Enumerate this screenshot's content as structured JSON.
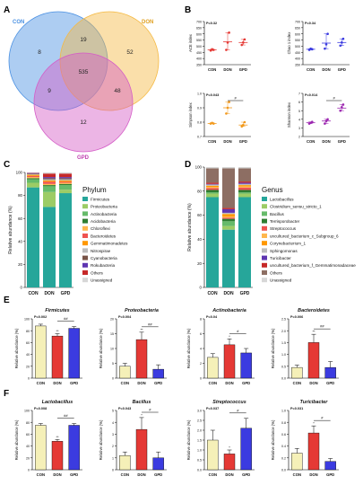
{
  "panels": {
    "A": "A",
    "B": "B",
    "C": "C",
    "D": "D",
    "E": "E",
    "F": "F"
  },
  "colors": {
    "con": "#f5f0b8",
    "don": "#e53935",
    "gpd": "#3b3be0",
    "venn_con": "#4a90e2",
    "venn_don": "#f5b942",
    "venn_gpd": "#d45cc6"
  },
  "venn": {
    "labels": {
      "con": "CON",
      "don": "DON",
      "gpd": "GPD"
    },
    "counts": {
      "con_only": "8",
      "don_only": "52",
      "gpd_only": "12",
      "con_don": "19",
      "con_gpd": "9",
      "don_gpd": "48",
      "all": "535"
    }
  },
  "chart_data": [
    {
      "panel": "B",
      "type": "scatter",
      "ylabel": "ACE index",
      "pval": "P=0.32",
      "categories": [
        "CON",
        "DON",
        "GPD"
      ],
      "ylim": [
        350,
        700
      ],
      "yticks": [
        "350",
        "400",
        "450",
        "500",
        "550",
        "600",
        "650",
        "700"
      ],
      "points": [
        [
          465,
          475,
          470
        ],
        [
          470,
          530,
          610
        ],
        [
          510,
          530,
          555
        ]
      ],
      "means": [
        470,
        535,
        530
      ],
      "sig": ""
    },
    {
      "panel": "B",
      "type": "scatter",
      "ylabel": "Chao 1 index",
      "pval": "P=0.34",
      "categories": [
        "CON",
        "DON",
        "GPD"
      ],
      "ylim": [
        350,
        700
      ],
      "yticks": [
        "350",
        "400",
        "450",
        "500",
        "550",
        "600",
        "650",
        "700"
      ],
      "points": [
        [
          470,
          480,
          475
        ],
        [
          480,
          515,
          600
        ],
        [
          505,
          530,
          560
        ]
      ],
      "means": [
        475,
        525,
        530
      ],
      "sig": ""
    },
    {
      "panel": "B",
      "type": "scatter",
      "ylabel": "Simpson index",
      "pval": "P=0.043",
      "categories": [
        "CON",
        "DON",
        "GPD"
      ],
      "ylim": [
        0.7,
        1.0
      ],
      "yticks": [
        "0.7",
        "0.8",
        "0.9",
        "1.0"
      ],
      "points": [
        [
          0.79,
          0.795,
          0.79
        ],
        [
          0.86,
          0.9,
          0.94
        ],
        [
          0.77,
          0.78,
          0.8
        ]
      ],
      "means": [
        0.79,
        0.9,
        0.78
      ],
      "sig": "#"
    },
    {
      "panel": "B",
      "type": "scatter",
      "ylabel": "Shannon index",
      "pval": "P=0.014",
      "categories": [
        "CON",
        "DON",
        "GPD"
      ],
      "ylim": [
        2,
        7
      ],
      "yticks": [
        "2",
        "3",
        "4",
        "5",
        "6",
        "7"
      ],
      "points": [
        [
          3.5,
          3.6,
          3.7
        ],
        [
          3.5,
          3.8,
          4.0
        ],
        [
          5.0,
          5.4,
          5.7
        ]
      ],
      "means": [
        3.6,
        3.8,
        5.3
      ],
      "sig": "#"
    },
    {
      "panel": "C",
      "type": "bar",
      "legend_title": "Phylum",
      "ylabel": "Relative abundance (%)",
      "categories": [
        "CON",
        "DON",
        "GPD"
      ],
      "ylim": [
        0,
        100
      ],
      "yticks": [
        "0",
        "20",
        "40",
        "60",
        "80",
        "100"
      ],
      "series": [
        {
          "name": "Firmicutes",
          "color": "#26a69a",
          "values": [
            87,
            70,
            82
          ]
        },
        {
          "name": "Proteobacteria",
          "color": "#9ccc65",
          "values": [
            4,
            13,
            3
          ]
        },
        {
          "name": "Actinobacteria",
          "color": "#66bb6a",
          "values": [
            3,
            5,
            4
          ]
        },
        {
          "name": "Acidobacteria",
          "color": "#2e7d32",
          "values": [
            1,
            1,
            1
          ]
        },
        {
          "name": "Chloroflexi",
          "color": "#ffb74d",
          "values": [
            1,
            1,
            1
          ]
        },
        {
          "name": "Bacteroidetes",
          "color": "#ef5350",
          "values": [
            1,
            2,
            1
          ]
        },
        {
          "name": "Gemmatimonadetes",
          "color": "#ff9800",
          "values": [
            1,
            1,
            1
          ]
        },
        {
          "name": "Nitrospirae",
          "color": "#bdbdbd",
          "values": [
            0.5,
            1,
            1
          ]
        },
        {
          "name": "Cyanobacteria",
          "color": "#795548",
          "values": [
            0.5,
            1,
            1
          ]
        },
        {
          "name": "Rokubacteria",
          "color": "#5e35b1",
          "values": [
            0.5,
            1,
            1
          ]
        },
        {
          "name": "Others",
          "color": "#c62828",
          "values": [
            0.3,
            3,
            3
          ]
        },
        {
          "name": "Unassigned",
          "color": "#d7d7d7",
          "values": [
            0.2,
            1,
            1
          ]
        }
      ]
    },
    {
      "panel": "D",
      "type": "bar",
      "legend_title": "Genus",
      "ylabel": "Relative abundance (%)",
      "categories": [
        "CON",
        "DON",
        "GPD"
      ],
      "ylim": [
        0,
        100
      ],
      "yticks": [
        "0",
        "20",
        "40",
        "60",
        "80",
        "100"
      ],
      "series": [
        {
          "name": "Lactobacillus",
          "color": "#26a69a",
          "values": [
            75,
            48,
            75
          ]
        },
        {
          "name": "Clostridium_sensu_stricto_1",
          "color": "#9ccc65",
          "values": [
            3,
            3,
            3
          ]
        },
        {
          "name": "Bacillus",
          "color": "#66bb6a",
          "values": [
            1,
            4,
            1
          ]
        },
        {
          "name": "Terrisporobacter",
          "color": "#2e7d32",
          "values": [
            2,
            2,
            2
          ]
        },
        {
          "name": "Streptococcus",
          "color": "#ef5350",
          "values": [
            1.5,
            1,
            2
          ]
        },
        {
          "name": "uncultured_bacterium_c_Subgroup_6",
          "color": "#ffb74d",
          "values": [
            1,
            1,
            1
          ]
        },
        {
          "name": "Corynebacterium_1",
          "color": "#ff9800",
          "values": [
            1,
            2,
            1
          ]
        },
        {
          "name": "Sphingomonas",
          "color": "#bdbdbd",
          "values": [
            1,
            1,
            1
          ]
        },
        {
          "name": "Turicibacter",
          "color": "#5e35b1",
          "values": [
            0.5,
            3,
            1
          ]
        },
        {
          "name": "uncultured_bacterium_f_Gemmatimonadaceae",
          "color": "#c62828",
          "values": [
            1,
            1,
            1
          ]
        },
        {
          "name": "Others",
          "color": "#8d6e63",
          "values": [
            12,
            33,
            11
          ]
        },
        {
          "name": "Unassigned",
          "color": "#d7d7d7",
          "values": [
            1,
            1,
            1
          ]
        }
      ]
    },
    {
      "panel": "E",
      "type": "bar",
      "title": "Firmicutes",
      "pval": "P=0.002",
      "ylabel": "Relative abundance (%)",
      "categories": [
        "CON",
        "DON",
        "GPD"
      ],
      "ylim": [
        0,
        100
      ],
      "yticks": [
        "0",
        "20",
        "40",
        "60",
        "80",
        "100"
      ],
      "values": [
        88,
        71,
        84
      ],
      "errors": [
        3,
        4,
        3
      ],
      "sig": "##",
      "stars": [
        "",
        "**",
        ""
      ]
    },
    {
      "panel": "E",
      "type": "bar",
      "title": "Proteobacteria",
      "pval": "P=0.004",
      "ylabel": "Relative abundance (%)",
      "categories": [
        "CON",
        "DON",
        "GPD"
      ],
      "ylim": [
        0,
        20
      ],
      "yticks": [
        "0",
        "5",
        "10",
        "15",
        "20"
      ],
      "values": [
        4,
        13,
        3
      ],
      "errors": [
        1,
        2.5,
        1.5
      ],
      "sig": "##",
      "stars": [
        "",
        "**",
        ""
      ]
    },
    {
      "panel": "E",
      "type": "bar",
      "title": "Actinobacteria",
      "pval": "P=0.04",
      "ylabel": "Relative abundance (%)",
      "categories": [
        "CON",
        "DON",
        "GPD"
      ],
      "ylim": [
        0,
        8
      ],
      "yticks": [
        "0",
        "2",
        "4",
        "6",
        "8"
      ],
      "values": [
        2.8,
        4.5,
        3.4
      ],
      "errors": [
        0.5,
        0.8,
        0.6
      ],
      "sig": "#",
      "stars": [
        "",
        "*",
        ""
      ]
    },
    {
      "panel": "E",
      "type": "bar",
      "title": "Bacteroidetes",
      "pval": "P=0.006",
      "ylabel": "Relative abundance (%)",
      "categories": [
        "CON",
        "DON",
        "GPD"
      ],
      "ylim": [
        0,
        2.5
      ],
      "yticks": [
        "0.0",
        "0.5",
        "1.0",
        "1.5",
        "2.0",
        "2.5"
      ],
      "values": [
        0.45,
        1.5,
        0.45
      ],
      "errors": [
        0.1,
        0.35,
        0.25
      ],
      "sig": "##",
      "stars": [
        "",
        "**",
        ""
      ]
    },
    {
      "panel": "F",
      "type": "bar",
      "title": "Lactobacillus",
      "pval": "P=0.008",
      "ylabel": "Relative abundance (%)",
      "categories": [
        "CON",
        "DON",
        "GPD"
      ],
      "ylim": [
        0,
        100
      ],
      "yticks": [
        "0",
        "20",
        "40",
        "60",
        "80",
        "100"
      ],
      "values": [
        75,
        48,
        75
      ],
      "errors": [
        3,
        3,
        3
      ],
      "sig": "##",
      "stars": [
        "",
        "**",
        ""
      ]
    },
    {
      "panel": "F",
      "type": "bar",
      "title": "Bacillus",
      "pval": "P=0.043",
      "ylabel": "Relative abundance (%)",
      "categories": [
        "CON",
        "DON",
        "GPD"
      ],
      "ylim": [
        0,
        5
      ],
      "yticks": [
        "0",
        "1",
        "2",
        "3",
        "4",
        "5"
      ],
      "values": [
        1.2,
        3.4,
        1.0
      ],
      "errors": [
        0.3,
        1.0,
        0.5
      ],
      "sig": "#",
      "stars": [
        "",
        "*",
        ""
      ]
    },
    {
      "panel": "F",
      "type": "bar",
      "title": "Streptococcus",
      "pval": "P=0.037",
      "ylabel": "Relative abundance (%)",
      "categories": [
        "CON",
        "DON",
        "GPD"
      ],
      "ylim": [
        0,
        3
      ],
      "yticks": [
        "0.0",
        "0.5",
        "1.0",
        "1.5",
        "2.0",
        "2.5",
        "3.0"
      ],
      "values": [
        1.5,
        0.8,
        2.1
      ],
      "errors": [
        0.5,
        0.2,
        0.5
      ],
      "sig": "#",
      "stars": [
        "",
        "*",
        ""
      ]
    },
    {
      "panel": "F",
      "type": "bar",
      "title": "Turicibacter",
      "pval": "P=0.031",
      "ylabel": "Relative abundance (%)",
      "categories": [
        "CON",
        "DON",
        "GPD"
      ],
      "ylim": [
        0,
        1.0
      ],
      "yticks": [
        "0.0",
        "0.2",
        "0.4",
        "0.6",
        "0.8",
        "1.0"
      ],
      "values": [
        0.28,
        0.62,
        0.14
      ],
      "errors": [
        0.08,
        0.12,
        0.05
      ],
      "sig": "#",
      "stars": [
        "",
        "*",
        ""
      ]
    }
  ]
}
